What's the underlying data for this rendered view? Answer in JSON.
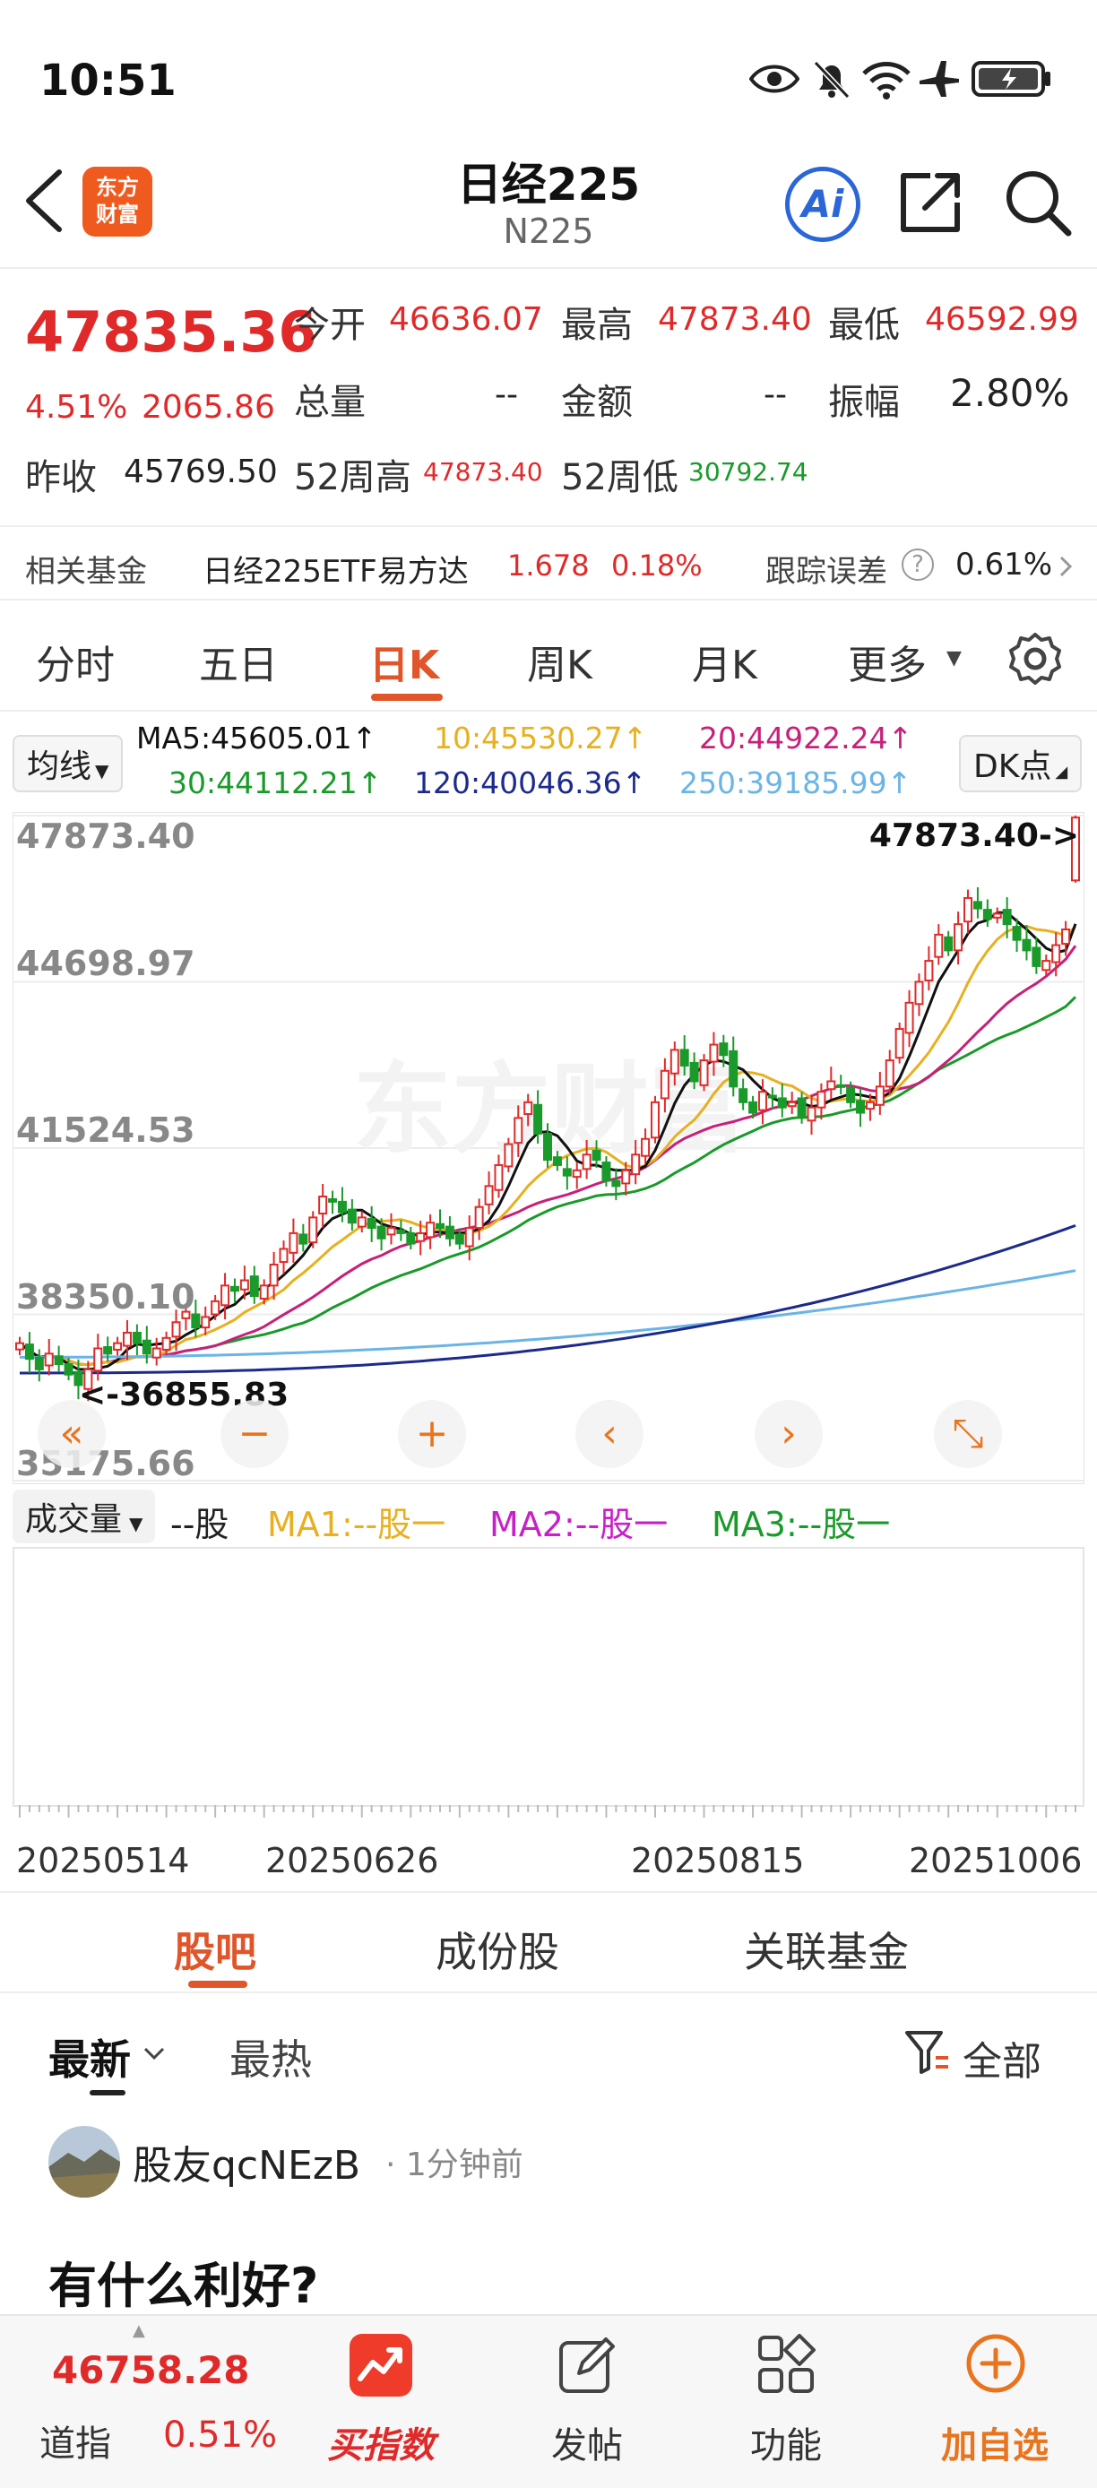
{
  "status_bar": {
    "time": "10:51"
  },
  "header": {
    "title": "日经225",
    "subtitle": "N225",
    "logo_text_1": "东方",
    "logo_text_2": "财富",
    "ai_label": "Ai"
  },
  "quote": {
    "last": "47835.36",
    "change_pct": "4.51%",
    "change": "2065.86",
    "open_label": "今开",
    "open": "46636.07",
    "high_label": "最高",
    "high": "47873.40",
    "low_label": "最低",
    "low": "46592.99",
    "volume_label": "总量",
    "volume": "--",
    "amount_label": "金额",
    "amount": "--",
    "amplitude_label": "振幅",
    "amplitude": "2.80%",
    "prev_close_label": "昨收",
    "prev_close": "45769.50",
    "wk52_high_label": "52周高",
    "wk52_high": "47873.40",
    "wk52_low_label": "52周低",
    "wk52_low": "30792.74"
  },
  "related_fund": {
    "label": "相关基金",
    "name": "日经225ETF易方达",
    "price": "1.678",
    "change_pct": "0.18%",
    "tracking_label": "跟踪误差",
    "tracking": "0.61%"
  },
  "period_tabs": [
    "分时",
    "五日",
    "日K",
    "周K",
    "月K",
    "更多"
  ],
  "active_period": 2,
  "ma_legend": {
    "selector": "均线",
    "ma5": "MA5:45605.01↑",
    "ma10": "10:45530.27↑",
    "ma20": "20:44922.24↑",
    "ma30": "30:44112.21↑",
    "ma120": "120:40046.36↑",
    "ma250": "250:39185.99↑",
    "dk": "DK点"
  },
  "colors": {
    "ma5": "#111111",
    "ma10": "#e8b020",
    "ma20": "#c8207a",
    "ma30": "#1a9a2a",
    "ma120": "#1c2a8c",
    "ma250": "#6ab4e6",
    "up": "#e02a2a",
    "down": "#1a9a2a",
    "accent": "#e0552a"
  },
  "chart_data": {
    "type": "candlestick",
    "y_ticks": [
      "47873.40",
      "44698.97",
      "41524.53",
      "38350.10",
      "35175.66"
    ],
    "ylim": [
      35175.66,
      47873.4
    ],
    "high_marker": "47873.40->",
    "low_marker": "<-36855.83",
    "x_ticks": [
      "20250514",
      "20250626",
      "20250815",
      "20251006"
    ],
    "closes": [
      37800,
      37500,
      37300,
      37600,
      37400,
      37200,
      37000,
      37300,
      37700,
      37600,
      37800,
      38000,
      37800,
      37600,
      37700,
      37900,
      38200,
      38400,
      38100,
      38300,
      38600,
      38900,
      38800,
      39000,
      38700,
      38900,
      39300,
      39600,
      39900,
      39700,
      40200,
      40600,
      40500,
      40300,
      40100,
      40200,
      40000,
      39800,
      40000,
      39900,
      39700,
      39900,
      40100,
      40000,
      39800,
      39700,
      40000,
      40400,
      40800,
      41200,
      41600,
      42100,
      42400,
      41800,
      41300,
      41200,
      41000,
      41100,
      41400,
      41300,
      40900,
      40800,
      41100,
      41400,
      41700,
      42400,
      43000,
      43400,
      43100,
      42800,
      43200,
      43500,
      43300,
      42700,
      42400,
      42200,
      42600,
      42500,
      42300,
      42400,
      42100,
      42300,
      42600,
      42800,
      42700,
      42400,
      42200,
      42400,
      42700,
      43200,
      43800,
      44300,
      44700,
      45100,
      45600,
      45300,
      45800,
      46300,
      46100,
      45900,
      46000,
      45800,
      45500,
      45300,
      45000,
      45100,
      45400,
      45700,
      47835
    ]
  },
  "ma_values": {
    "ma120_start": 37230,
    "ma120_end": 40046,
    "ma250_start": 37530,
    "ma250_end": 39186
  },
  "chart_controls": [
    "«",
    "−",
    "+",
    "‹",
    "›",
    "⤡"
  ],
  "volume": {
    "selector": "成交量",
    "unit": "--股",
    "ma1": "MA1:--股一",
    "ma2": "MA2:--股一",
    "ma3": "MA3:--股一"
  },
  "content_tabs": [
    "股吧",
    "成份股",
    "关联基金"
  ],
  "sort": {
    "latest": "最新",
    "hot": "最热",
    "filter": "全部"
  },
  "post": {
    "user": "股友qcNEzB",
    "time": "· 1分钟前",
    "title": "有什么利好?"
  },
  "bottom_bar": {
    "index_value": "46758.28",
    "index_name": "道指",
    "index_change": "0.51%",
    "buy_index": "买指数",
    "post": "发帖",
    "functions": "功能",
    "add_watch": "加自选"
  }
}
